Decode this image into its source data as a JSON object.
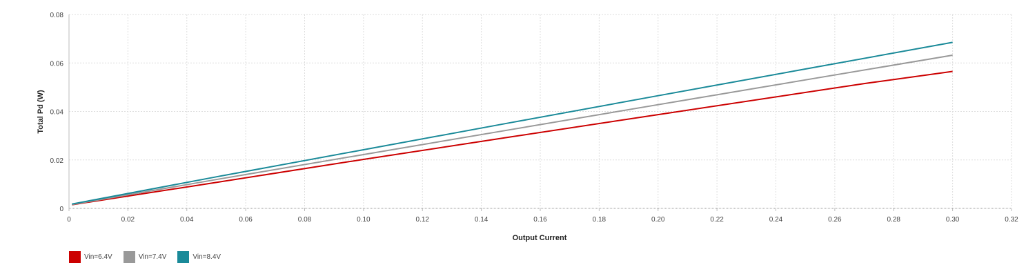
{
  "chart_data": {
    "type": "line",
    "xlabel": "Output Current",
    "ylabel": "Total Pd (W)",
    "xlim": [
      0,
      0.32
    ],
    "ylim": [
      0,
      0.08
    ],
    "xticks": [
      "0",
      "0.02",
      "0.04",
      "0.06",
      "0.08",
      "0.10",
      "0.12",
      "0.14",
      "0.16",
      "0.18",
      "0.20",
      "0.22",
      "0.24",
      "0.26",
      "0.28",
      "0.30",
      "0.32"
    ],
    "yticks": [
      "0",
      "0.02",
      "0.04",
      "0.06",
      "0.08"
    ],
    "grid": true,
    "legend_position": "bottom-left",
    "series": [
      {
        "name": "Vin=6.4V",
        "color": "#cc0000",
        "points": [
          [
            0.001,
            0.0015
          ],
          [
            0.05,
            0.0107
          ],
          [
            0.1,
            0.0202
          ],
          [
            0.15,
            0.0295
          ],
          [
            0.2,
            0.0387
          ],
          [
            0.27,
            0.0515
          ],
          [
            0.3,
            0.0565
          ]
        ]
      },
      {
        "name": "Vin=7.4V",
        "color": "#999999",
        "points": [
          [
            0.001,
            0.0016
          ],
          [
            0.05,
            0.0119
          ],
          [
            0.1,
            0.0222
          ],
          [
            0.15,
            0.0325
          ],
          [
            0.2,
            0.0428
          ],
          [
            0.25,
            0.053
          ],
          [
            0.3,
            0.0632
          ]
        ]
      },
      {
        "name": "Vin=8.4V",
        "color": "#1a8a99",
        "points": [
          [
            0.001,
            0.0018
          ],
          [
            0.05,
            0.013
          ],
          [
            0.1,
            0.0242
          ],
          [
            0.15,
            0.0354
          ],
          [
            0.2,
            0.0465
          ],
          [
            0.25,
            0.0575
          ],
          [
            0.3,
            0.0685
          ]
        ]
      }
    ]
  }
}
